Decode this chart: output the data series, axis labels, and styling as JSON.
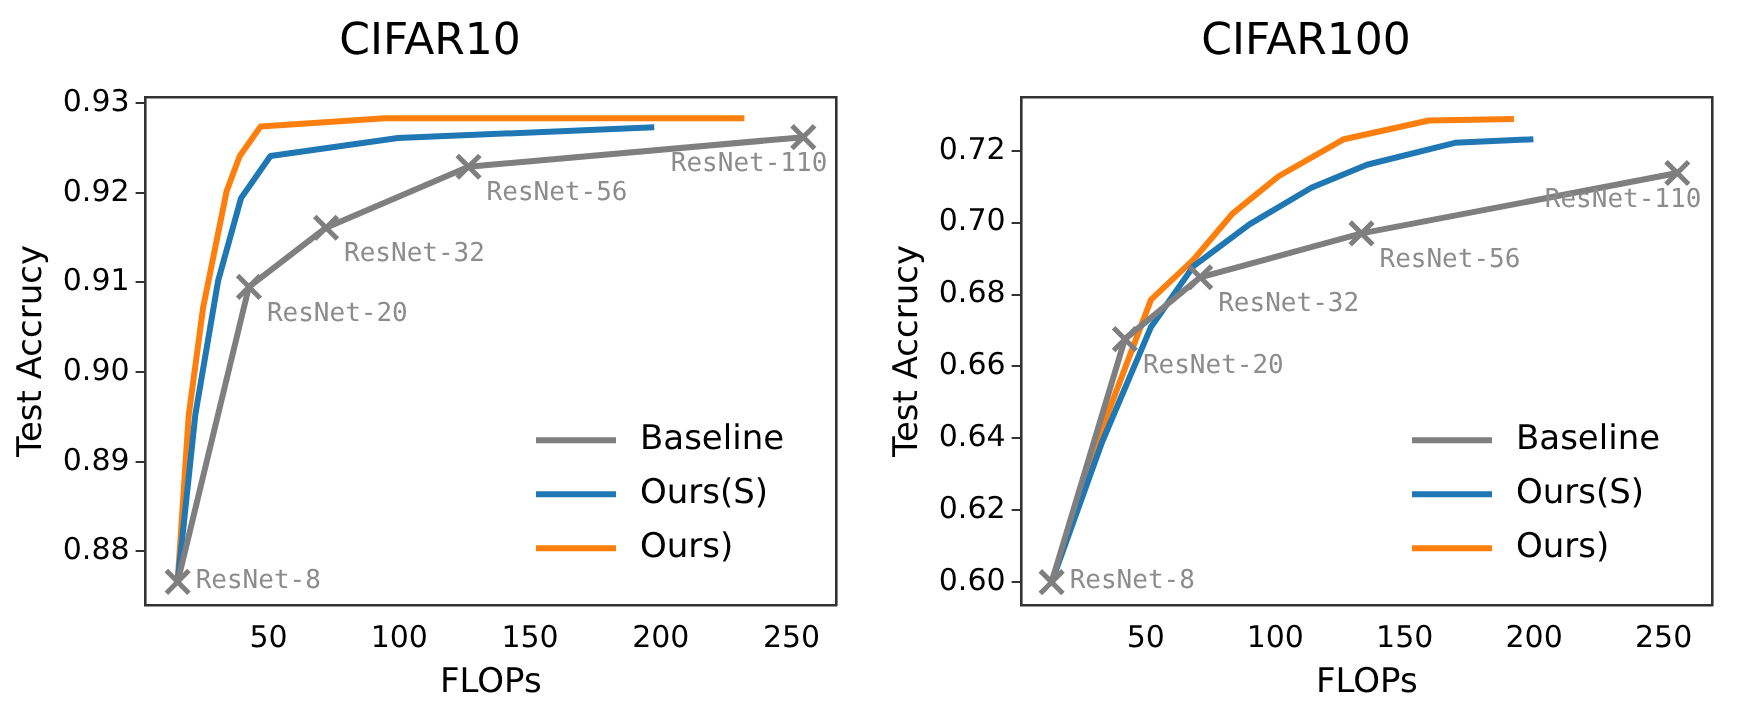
{
  "chart_data": [
    {
      "type": "line",
      "title": "CIFAR10",
      "xlabel": "FLOPs",
      "ylabel": "Test Accrucy",
      "xlim": [
        3,
        267
      ],
      "xticks": [
        50,
        100,
        150,
        200,
        250
      ],
      "ylim": [
        0.874,
        0.9307
      ],
      "yticks": [
        0.88,
        0.89,
        {
          "value": 0.9,
          "label": "0.90"
        },
        0.91,
        0.92,
        0.93
      ],
      "grid": false,
      "legend": "bottom right",
      "series": [
        {
          "name": "Baseline",
          "color": "#7f7f7f",
          "marker": "cross",
          "x": [
            15.25,
            42.5,
            72,
            126.5,
            254.5
          ],
          "values": [
            0.8766,
            0.9095,
            0.9161,
            0.9229,
            0.9262
          ]
        },
        {
          "name": "Ours(S)",
          "color": "#1f77b4",
          "marker": "none",
          "x": [
            15.25,
            22,
            30.75,
            39.5,
            50.75,
            99.5,
            197.5
          ],
          "values": [
            0.8766,
            0.8952,
            0.9102,
            0.9194,
            0.9241,
            0.9261,
            0.9273
          ]
        },
        {
          "name": "Ours)",
          "color": "#ff7f0e",
          "marker": "none",
          "x": [
            15.25,
            19.5,
            25,
            34,
            39,
            47,
            94.5,
            232
          ],
          "values": [
            0.8766,
            0.8952,
            0.9072,
            0.9202,
            0.9241,
            0.9274,
            0.9283,
            0.9283
          ]
        }
      ],
      "annotations": [
        {
          "text": "ResNet-8",
          "x": 15.25,
          "y": 0.8766
        },
        {
          "text": "ResNet-20",
          "x": 42.5,
          "y": 0.9095
        },
        {
          "text": "ResNet-32",
          "x": 72,
          "y": 0.9161
        },
        {
          "text": "ResNet-56",
          "x": 126.5,
          "y": 0.9229
        },
        {
          "text": "ResNet-110",
          "x": 254.5,
          "y": 0.9262
        }
      ]
    },
    {
      "type": "line",
      "title": "CIFAR100",
      "xlabel": "FLOPs",
      "ylabel": "Test Accrucy",
      "xlim": [
        2,
        268.7
      ],
      "xticks": [
        50,
        100,
        150,
        200,
        250
      ],
      "ylim": [
        0.5936,
        0.735
      ],
      "yticks": [
        {
          "value": 0.6,
          "label": "0.60"
        },
        0.62,
        0.64,
        0.66,
        0.68,
        {
          "value": 0.7,
          "label": "0.70"
        },
        0.72
      ],
      "grid": false,
      "legend": "bottom right",
      "series": [
        {
          "name": "Baseline",
          "color": "#7f7f7f",
          "marker": "cross",
          "x": [
            13.6,
            41.9,
            71,
            133.3,
            255.3
          ],
          "values": [
            0.6,
            0.6676,
            0.6848,
            0.697,
            0.7138
          ]
        },
        {
          "name": "Ours(S)",
          "color": "#1f77b4",
          "marker": "none",
          "x": [
            13.6,
            33.1,
            52,
            68.4,
            90,
            113.9,
            135.4,
            169.4,
            199.7
          ],
          "values": [
            0.6,
            0.639,
            0.671,
            0.6879,
            0.6995,
            0.7097,
            0.7161,
            0.7222,
            0.7232
          ]
        },
        {
          "name": "Ours)",
          "color": "#ff7f0e",
          "marker": "none",
          "x": [
            13.6,
            33.1,
            52,
            68.4,
            83.6,
            101.3,
            126.5,
            159.3,
            192.2
          ],
          "values": [
            0.6,
            0.6427,
            0.6786,
            0.6897,
            0.7026,
            0.7129,
            0.7232,
            0.7284,
            0.7288
          ]
        }
      ],
      "annotations": [
        {
          "text": "ResNet-8",
          "x": 13.6,
          "y": 0.6
        },
        {
          "text": "ResNet-20",
          "x": 41.9,
          "y": 0.6676
        },
        {
          "text": "ResNet-32",
          "x": 71,
          "y": 0.6848
        },
        {
          "text": "ResNet-56",
          "x": 133.3,
          "y": 0.697
        },
        {
          "text": "ResNet-110",
          "x": 255.3,
          "y": 0.7138
        }
      ]
    }
  ]
}
